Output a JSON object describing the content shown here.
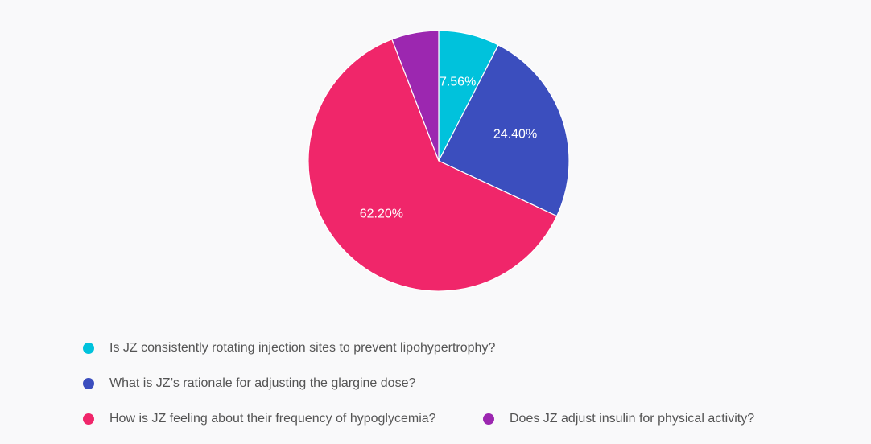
{
  "chart_data": {
    "type": "pie",
    "slices": [
      {
        "label": "Is JZ consistently rotating injection sites to prevent lipohypertrophy?",
        "value": 7.56,
        "display": "7.56%",
        "color": "#00c2dc"
      },
      {
        "label": "What is JZ’s rationale for adjusting the glargine dose?",
        "value": 24.4,
        "display": "24.40%",
        "color": "#3b4ebe"
      },
      {
        "label": "How is JZ feeling about their frequency of hypoglycemia?",
        "value": 62.2,
        "display": "62.20%",
        "color": "#f0266a"
      },
      {
        "label": "Does JZ adjust insulin for physical activity?",
        "value": 5.84,
        "display": "",
        "color": "#9c27b0"
      }
    ],
    "legend_position": "bottom"
  }
}
